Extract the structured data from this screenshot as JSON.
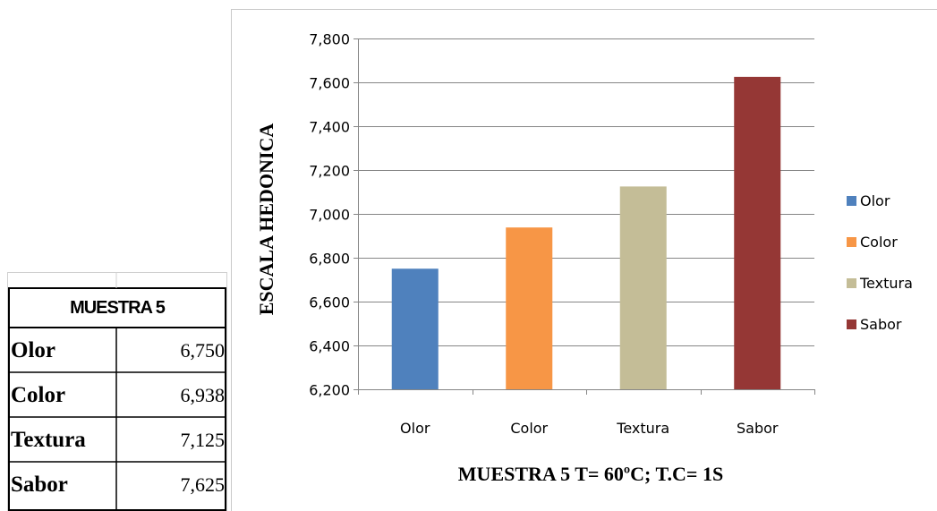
{
  "table": {
    "title": "MUESTRA 5",
    "rows": [
      {
        "label": "Olor",
        "value": "6,750"
      },
      {
        "label": "Color",
        "value": "6,938"
      },
      {
        "label": "Textura",
        "value": "7,125"
      },
      {
        "label": "Sabor",
        "value": "7,625"
      }
    ]
  },
  "chart_data": {
    "type": "bar",
    "categories": [
      "Olor",
      "Color",
      "Textura",
      "Sabor"
    ],
    "values": [
      6.75,
      6.938,
      7.125,
      7.625
    ],
    "colors": [
      "#4f81bd",
      "#f79646",
      "#c4bd97",
      "#953735"
    ],
    "ylabel": "ESCALA HEDONICA",
    "xlabel": "MUESTRA 5 T= 60ºC;  T.C= 1S",
    "ylim": [
      6.2,
      7.8
    ],
    "yticks": [
      6.2,
      6.4,
      6.6,
      6.8,
      7.0,
      7.2,
      7.4,
      7.6,
      7.8
    ],
    "ytick_labels": [
      "6,200",
      "6,400",
      "6,600",
      "6,800",
      "7,000",
      "7,200",
      "7,400",
      "7,600",
      "7,800"
    ],
    "grid": true,
    "legend": {
      "position": "right",
      "entries": [
        "Olor",
        "Color",
        "Textura",
        "Sabor"
      ]
    }
  }
}
